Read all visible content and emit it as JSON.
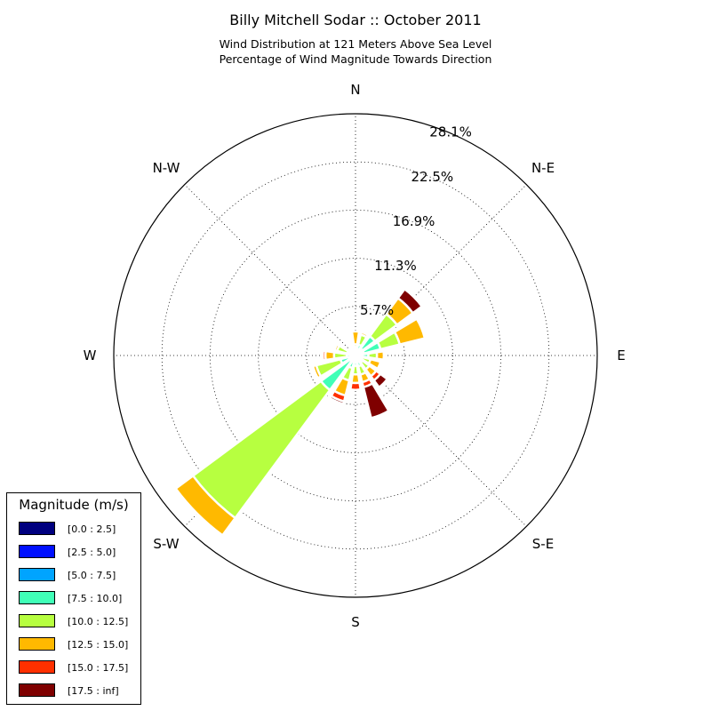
{
  "chart_data": {
    "type": "windrose",
    "title": "Billy Mitchell Sodar :: October 2011",
    "subtitle_lines": [
      "Wind Distribution at 121 Meters Above Sea Level",
      "Percentage of Wind Magnitude Towards Direction"
    ],
    "directions": [
      "N",
      "N-E",
      "E",
      "S-E",
      "S",
      "S-W",
      "W",
      "N-W"
    ],
    "radial_ticks": [
      {
        "value": 5.7,
        "label": "5.7%"
      },
      {
        "value": 11.3,
        "label": "11.3%"
      },
      {
        "value": 16.9,
        "label": "16.9%"
      },
      {
        "value": 22.5,
        "label": "22.5%"
      },
      {
        "value": 28.1,
        "label": "28.1%"
      }
    ],
    "rmax": 28.1,
    "legend": {
      "title": "Magnitude (m/s)",
      "placement": "lower-left"
    },
    "bins": [
      {
        "label": "[0.0 : 2.5]",
        "color": "#00007f"
      },
      {
        "label": "[2.5 : 5.0]",
        "color": "#0010ff"
      },
      {
        "label": "[5.0 : 7.5]",
        "color": "#00a4ff"
      },
      {
        "label": "[7.5 : 10.0]",
        "color": "#40ffb7"
      },
      {
        "label": "[10.0 : 12.5]",
        "color": "#b7ff40"
      },
      {
        "label": "[12.5 : 15.0]",
        "color": "#ffb900"
      },
      {
        "label": "[15.0 : 17.5]",
        "color": "#ff3000"
      },
      {
        "label": "[17.5 : inf]",
        "color": "#7f0000"
      }
    ],
    "sector_angles_deg": [
      0,
      22.5,
      45,
      67.5,
      90,
      112.5,
      135,
      157.5,
      180,
      202.5,
      225,
      247.5,
      270,
      292.5,
      315,
      337.5
    ],
    "cumulative_percent": [
      [
        0.1,
        0.2,
        0.5,
        1.0,
        1.3,
        2.8,
        2.8,
        2.8
      ],
      [
        0.1,
        0.2,
        0.6,
        1.3,
        2.5,
        2.8,
        2.8,
        2.8
      ],
      [
        0.1,
        0.3,
        1.0,
        2.8,
        6.0,
        8.3,
        8.3,
        9.6
      ],
      [
        0.1,
        0.3,
        1.0,
        3.0,
        5.3,
        8.3,
        8.3,
        8.3
      ],
      [
        0.1,
        0.3,
        0.6,
        1.5,
        2.5,
        3.3,
        3.3,
        3.3
      ],
      [
        0.1,
        0.2,
        0.4,
        0.8,
        1.8,
        3.0,
        3.0,
        3.0
      ],
      [
        0.1,
        0.2,
        0.5,
        1.0,
        2.0,
        3.0,
        3.6,
        4.6
      ],
      [
        0.1,
        0.2,
        0.5,
        1.3,
        2.3,
        3.2,
        3.8,
        7.5
      ],
      [
        0.1,
        0.2,
        0.5,
        1.2,
        2.2,
        3.2,
        4.0,
        4.0
      ],
      [
        0.1,
        0.2,
        0.5,
        1.5,
        3.0,
        4.8,
        5.5,
        5.8
      ],
      [
        0.1,
        0.3,
        0.8,
        5.0,
        23.5,
        26.0,
        26.0,
        26.0
      ],
      [
        0.1,
        0.2,
        0.6,
        1.8,
        4.7,
        5.1,
        5.1,
        5.1
      ],
      [
        0.1,
        0.2,
        0.4,
        1.0,
        2.5,
        3.5,
        3.8,
        3.8
      ],
      [
        0.1,
        0.2,
        0.4,
        1.0,
        2.2,
        2.5,
        2.5,
        2.5
      ],
      [
        0.1,
        0.2,
        0.4,
        0.8,
        1.0,
        1.0,
        1.0,
        1.0
      ],
      [
        0.1,
        0.2,
        0.4,
        0.8,
        1.0,
        1.0,
        1.0,
        1.0
      ]
    ]
  }
}
